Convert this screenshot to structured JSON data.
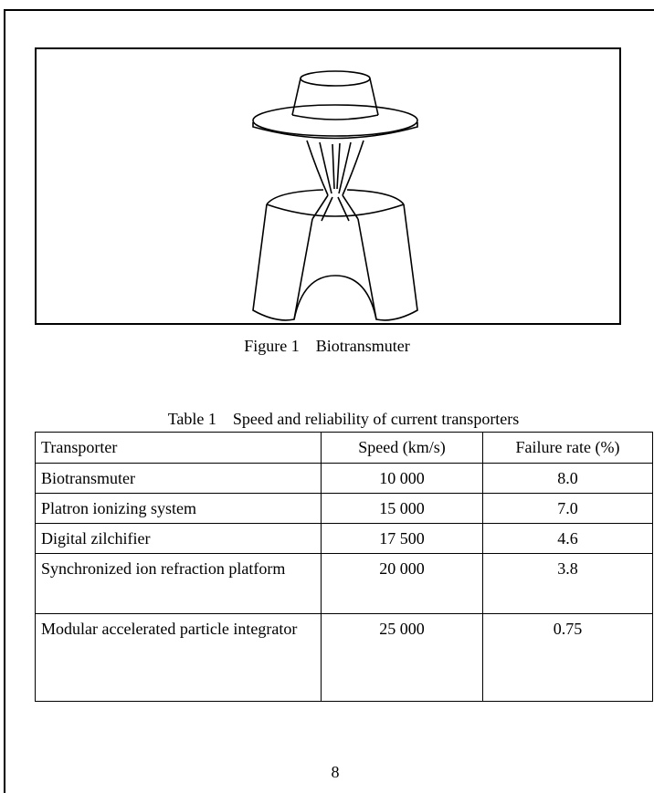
{
  "figure": {
    "caption_label": "Figure 1",
    "caption_title": "Biotransmuter"
  },
  "table": {
    "caption_label": "Table 1",
    "caption_title": "Speed and reliability of current transporters",
    "headers": [
      "Transporter",
      "Speed (km/s)",
      "Failure rate (%)"
    ],
    "rows": [
      [
        "Biotransmuter",
        "10 000",
        "8.0"
      ],
      [
        "Platron ionizing system",
        "15 000",
        "7.0"
      ],
      [
        "Digital zilchifier",
        "17 500",
        "4.6"
      ],
      [
        "Synchronized ion refraction platform",
        "20 000",
        "3.8"
      ],
      [
        "Modular accelerated particle integrator",
        "25 000",
        "0.75"
      ]
    ]
  },
  "page_number": "8"
}
